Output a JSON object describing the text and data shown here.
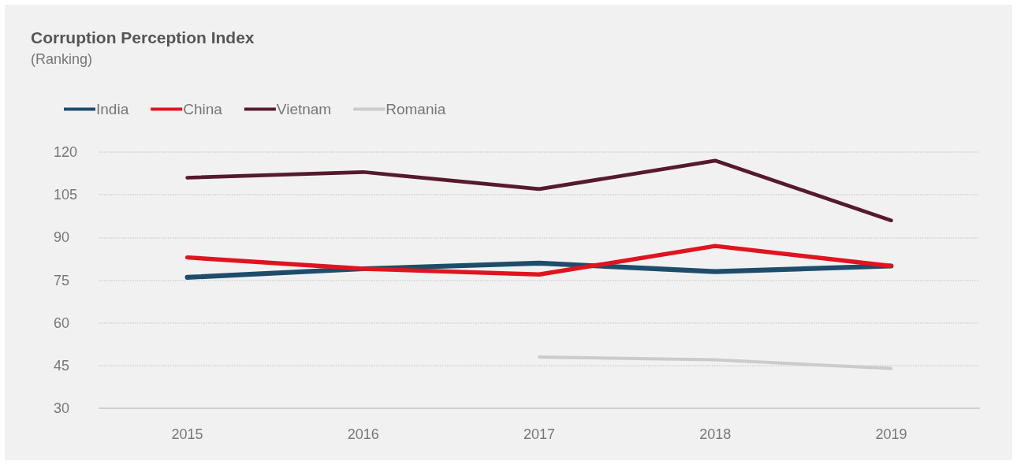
{
  "chart_data": {
    "type": "line",
    "title": "Corruption Perception Index",
    "subtitle": "(Ranking)",
    "categories": [
      "2015",
      "2016",
      "2017",
      "2018",
      "2019"
    ],
    "series": [
      {
        "name": "India",
        "color": "#1d4d6b",
        "values": [
          76,
          79,
          81,
          78,
          80
        ]
      },
      {
        "name": "China",
        "color": "#e0141e",
        "values": [
          83,
          79,
          77,
          87,
          80
        ]
      },
      {
        "name": "Vietnam",
        "color": "#561a2c",
        "values": [
          111,
          113,
          107,
          117,
          96
        ]
      },
      {
        "name": "Romania",
        "color": "#cbcbcb",
        "values": [
          null,
          null,
          48,
          47,
          44
        ]
      }
    ],
    "ylim": [
      30,
      120
    ],
    "yticks": [
      30,
      45,
      60,
      75,
      90,
      105,
      120
    ],
    "grid": "y",
    "legend": "top left",
    "marker": "none",
    "line_style": "solid"
  }
}
